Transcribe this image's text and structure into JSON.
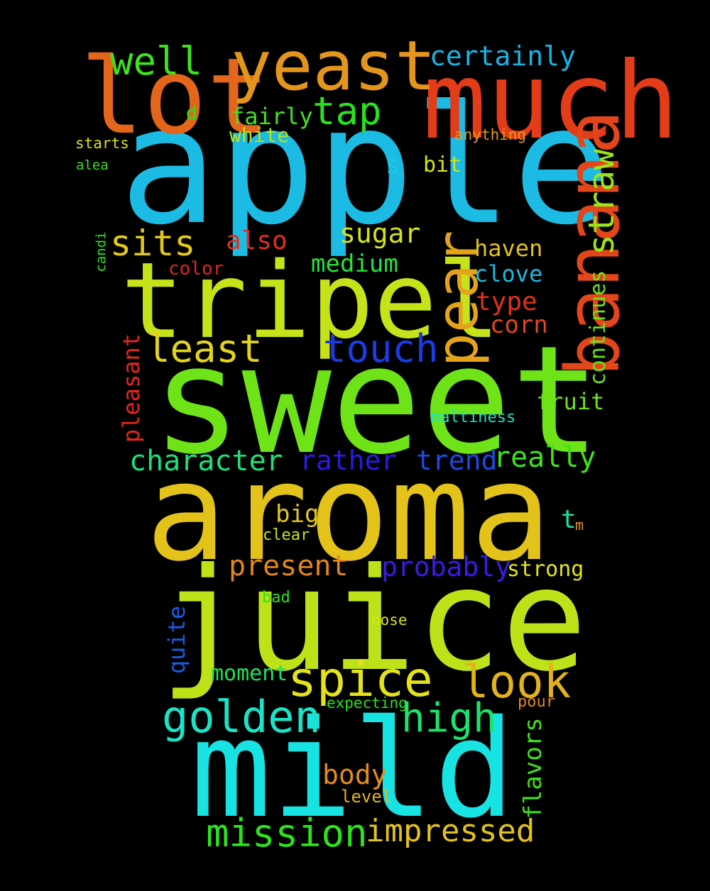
{
  "words": [
    {
      "id": "apple",
      "text": "apple",
      "color": "#1bbbe3"
    },
    {
      "id": "sweet",
      "text": "sweet",
      "color": "#6ee318"
    },
    {
      "id": "aroma",
      "text": "aroma",
      "color": "#e3c31a"
    },
    {
      "id": "juice",
      "text": "juice",
      "color": "#bde318"
    },
    {
      "id": "mild",
      "text": "mild",
      "color": "#18e3e3"
    },
    {
      "id": "much",
      "text": "much",
      "color": "#e33c18"
    },
    {
      "id": "lot",
      "text": "lot",
      "color": "#e3661b"
    },
    {
      "id": "tripel",
      "text": "tripel",
      "color": "#c6e31a"
    },
    {
      "id": "yeast",
      "text": "yeast",
      "color": "#e3961b"
    },
    {
      "id": "banana",
      "text": "banana",
      "color": "#e3461b"
    },
    {
      "id": "pear",
      "text": "pear",
      "color": "#e3a31b"
    },
    {
      "id": "straw",
      "text": "straw",
      "color": "#9be31b"
    },
    {
      "id": "well",
      "text": "well",
      "color": "#3ee31b"
    },
    {
      "id": "certainly",
      "text": "certainly",
      "color": "#1bb3e3"
    },
    {
      "id": "tap",
      "text": "tap",
      "color": "#28e31b"
    },
    {
      "id": "d",
      "text": "d",
      "color": "#2be31b"
    },
    {
      "id": "fairly",
      "text": "fairly",
      "color": "#46e31b"
    },
    {
      "id": "white",
      "text": "white",
      "color": "#b5e31b"
    },
    {
      "id": "anything",
      "text": "anything",
      "color": "#e39b1b"
    },
    {
      "id": "starts",
      "text": "starts",
      "color": "#d8e31b"
    },
    {
      "id": "alea",
      "text": "alea",
      "color": "#38e31b"
    },
    {
      "id": "s",
      "text": "s",
      "color": "#1bc8e3"
    },
    {
      "id": "bit",
      "text": "bit",
      "color": "#d3e31b"
    },
    {
      "id": "sits",
      "text": "sits",
      "color": "#e3c81b"
    },
    {
      "id": "also",
      "text": "also",
      "color": "#e3301b"
    },
    {
      "id": "sugar",
      "text": "sugar",
      "color": "#d3e31b"
    },
    {
      "id": "candi",
      "text": "candi",
      "color": "#28e31b"
    },
    {
      "id": "haven",
      "text": "haven",
      "color": "#e3c31b"
    },
    {
      "id": "medium",
      "text": "medium",
      "color": "#28e33b"
    },
    {
      "id": "color",
      "text": "color",
      "color": "#e3231b"
    },
    {
      "id": "clove",
      "text": "clove",
      "color": "#1bb8e3"
    },
    {
      "id": "type",
      "text": "type",
      "color": "#e3301b"
    },
    {
      "id": "continues",
      "text": "continues",
      "color": "#6be31b"
    },
    {
      "id": "corn",
      "text": "corn",
      "color": "#e3461b"
    },
    {
      "id": "least",
      "text": "least",
      "color": "#e3d31b"
    },
    {
      "id": "touch",
      "text": "touch",
      "color": "#1b3be3"
    },
    {
      "id": "pleasant",
      "text": "pleasant",
      "color": "#e3281b"
    },
    {
      "id": "fruit",
      "text": "fruit",
      "color": "#6be31b"
    },
    {
      "id": "maltiness",
      "text": "maltiness",
      "color": "#1be3c3"
    },
    {
      "id": "character",
      "text": "character",
      "color": "#1be37a"
    },
    {
      "id": "rather",
      "text": "rather",
      "color": "#2b1be3"
    },
    {
      "id": "trend",
      "text": "trend",
      "color": "#1b4be3"
    },
    {
      "id": "really",
      "text": "really",
      "color": "#3ee31b"
    },
    {
      "id": "big",
      "text": "big",
      "color": "#e3c81b"
    },
    {
      "id": "t",
      "text": "t",
      "color": "#1be39a"
    },
    {
      "id": "m",
      "text": "m",
      "color": "#e3961b"
    },
    {
      "id": "clear",
      "text": "clear",
      "color": "#c3e31b"
    },
    {
      "id": "present",
      "text": "present",
      "color": "#e3861b"
    },
    {
      "id": "probably",
      "text": "probably",
      "color": "#3b1be3"
    },
    {
      "id": "strong",
      "text": "strong",
      "color": "#e3e31b"
    },
    {
      "id": "bad",
      "text": "bad",
      "color": "#2be31b"
    },
    {
      "id": "nose",
      "text": "nose",
      "color": "#d3e31b"
    },
    {
      "id": "quite",
      "text": "quite",
      "color": "#1b5be3"
    },
    {
      "id": "moment",
      "text": "moment",
      "color": "#1be35b"
    },
    {
      "id": "spice",
      "text": "spice",
      "color": "#e3e31b"
    },
    {
      "id": "look",
      "text": "look",
      "color": "#e3b31b"
    },
    {
      "id": "golden",
      "text": "golden",
      "color": "#1be3c8"
    },
    {
      "id": "expecting",
      "text": "expecting",
      "color": "#28e31b"
    },
    {
      "id": "high",
      "text": "high",
      "color": "#1be36b"
    },
    {
      "id": "pour",
      "text": "pour",
      "color": "#e3861b"
    },
    {
      "id": "flavors",
      "text": "flavors",
      "color": "#3ee31b"
    },
    {
      "id": "body",
      "text": "body",
      "color": "#e38b1b"
    },
    {
      "id": "level",
      "text": "level",
      "color": "#e3b31b"
    },
    {
      "id": "mission",
      "text": "mission",
      "color": "#2be31b"
    },
    {
      "id": "impressed",
      "text": "impressed",
      "color": "#e3c31b"
    }
  ]
}
